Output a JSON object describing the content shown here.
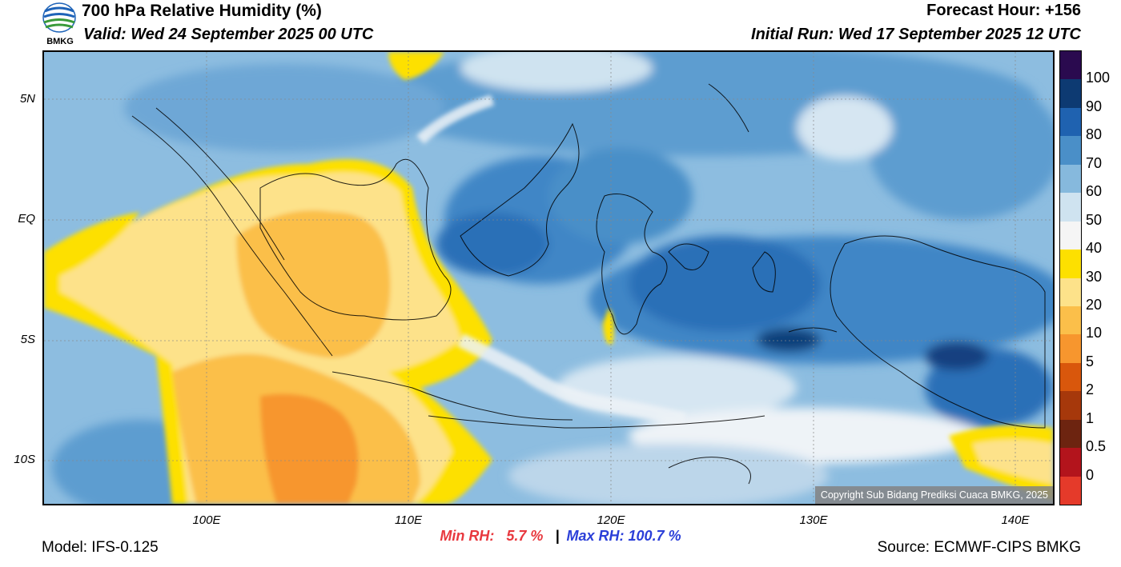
{
  "header": {
    "title": "700 hPa Relative Humidity (%)",
    "valid": "Valid: Wed 24 September 2025 00 UTC",
    "forecast_hour": "Forecast Hour: +156",
    "initial_run": "Initial Run: Wed 17 September 2025 12 UTC",
    "logo_text": "BMKG"
  },
  "map": {
    "copyright": "Copyright Sub Bidang Prediksi Cuaca BMKG, 2025",
    "lat_labels": [
      "5N",
      "EQ",
      "5S",
      "10S"
    ],
    "lon_labels": [
      "100E",
      "110E",
      "120E",
      "130E",
      "140E"
    ]
  },
  "colorbar": {
    "labels": [
      "100",
      "90",
      "80",
      "70",
      "60",
      "50",
      "40",
      "30",
      "20",
      "10",
      "5",
      "2",
      "1",
      "0.5",
      "0"
    ],
    "colors": [
      "#2a0a4f",
      "#0d3a72",
      "#1f62b0",
      "#4a8fc8",
      "#86b9dd",
      "#cfe3f0",
      "#f5f5f5",
      "#fde000",
      "#fde28a",
      "#fbbf4a",
      "#f7962e",
      "#d9570c",
      "#a6380b",
      "#6d2410",
      "#b3141c",
      "#e53a2a"
    ]
  },
  "stats": {
    "min_label": "Min RH:",
    "min_value": "5.7 %",
    "separator": "|",
    "max_label": "Max RH:",
    "max_value": "100.7 %"
  },
  "footer": {
    "model": "Model: IFS-0.125",
    "source": "Source: ECMWF-CIPS BMKG"
  }
}
